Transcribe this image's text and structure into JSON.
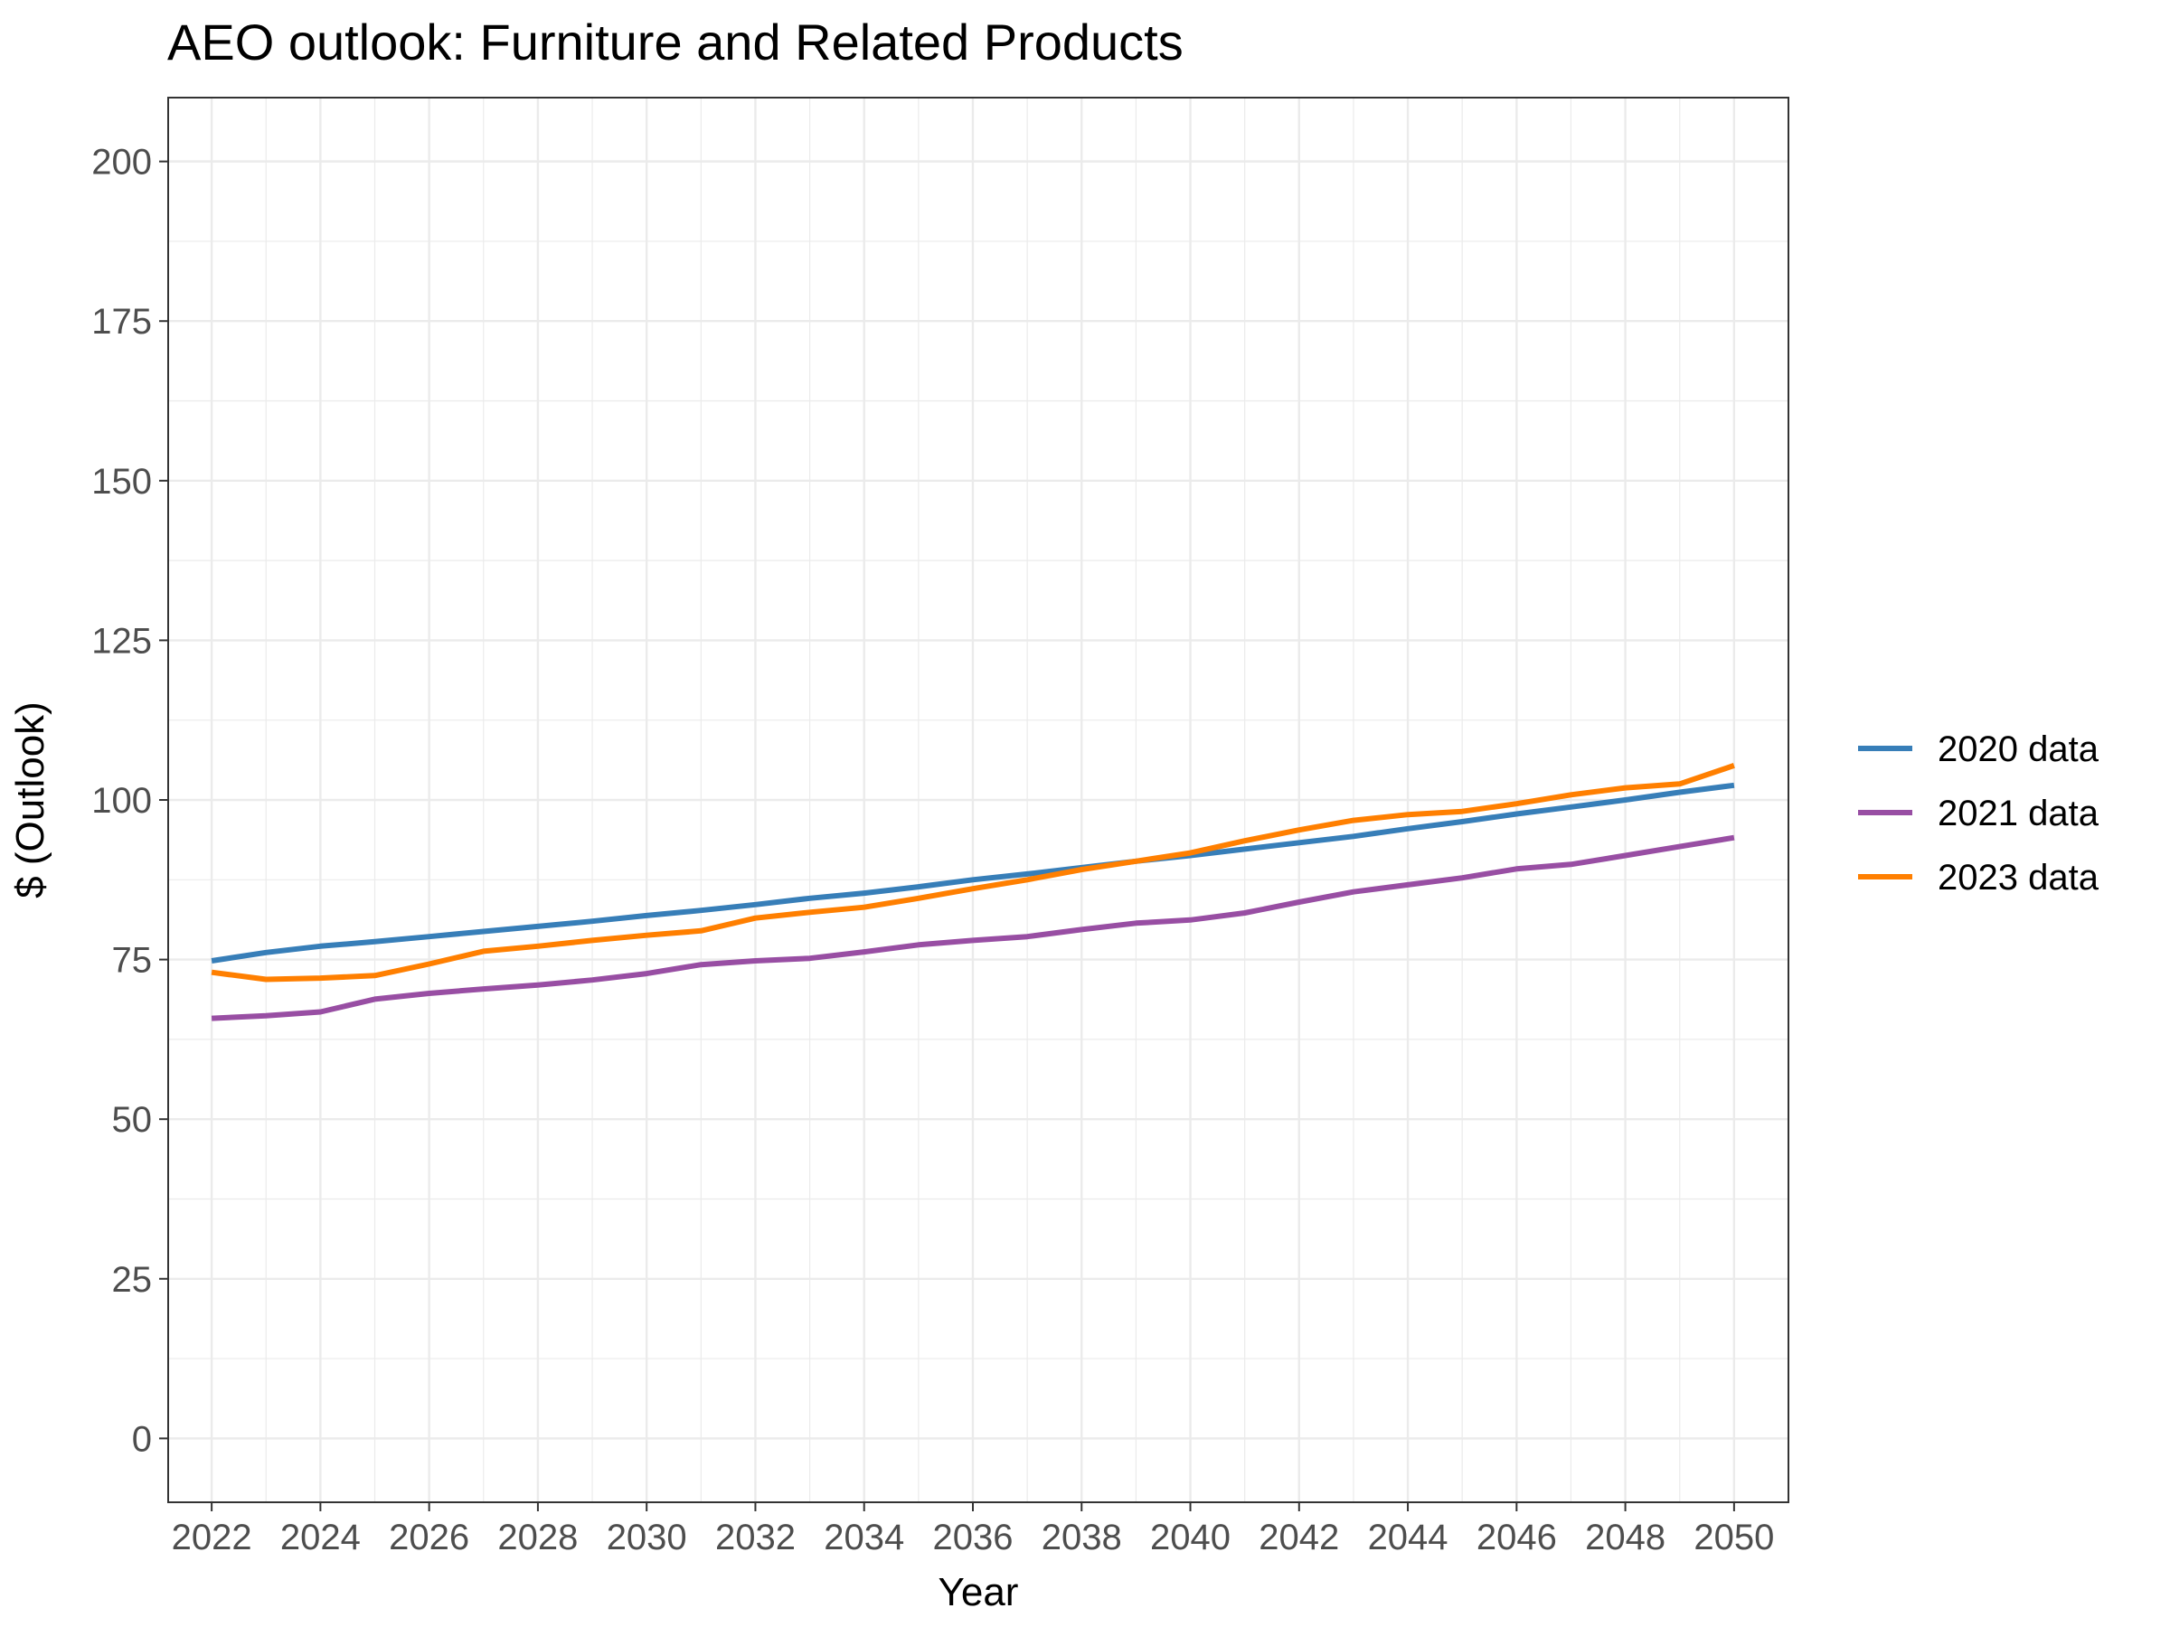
{
  "chart_data": {
    "type": "line",
    "title": "AEO outlook: Furniture and Related Products",
    "xlabel": "Year",
    "ylabel": "$ (Outlook)",
    "xlim": [
      2021.2,
      2051
    ],
    "ylim": [
      -10,
      210
    ],
    "x_ticks": [
      2022,
      2024,
      2026,
      2028,
      2030,
      2032,
      2034,
      2036,
      2038,
      2040,
      2042,
      2044,
      2046,
      2048,
      2050
    ],
    "y_ticks": [
      0,
      25,
      50,
      75,
      100,
      125,
      150,
      175,
      200
    ],
    "grid": true,
    "legend_position": "right",
    "x": [
      2022,
      2023,
      2024,
      2025,
      2026,
      2027,
      2028,
      2029,
      2030,
      2031,
      2032,
      2033,
      2034,
      2035,
      2036,
      2037,
      2038,
      2039,
      2040,
      2041,
      2042,
      2043,
      2044,
      2045,
      2046,
      2047,
      2048,
      2049,
      2050
    ],
    "series": [
      {
        "name": "2020 data",
        "color": "#377eb8",
        "values": [
          74.8,
          76.1,
          77.1,
          77.8,
          78.6,
          79.4,
          80.2,
          81.0,
          81.9,
          82.7,
          83.6,
          84.6,
          85.4,
          86.4,
          87.5,
          88.4,
          89.4,
          90.4,
          91.3,
          92.3,
          93.3,
          94.3,
          95.5,
          96.6,
          97.8,
          98.9,
          100.0,
          101.2,
          102.3
        ]
      },
      {
        "name": "2021 data",
        "color": "#984ea3",
        "values": [
          65.8,
          66.2,
          66.8,
          68.8,
          69.7,
          70.4,
          71.0,
          71.8,
          72.8,
          74.2,
          74.8,
          75.2,
          76.2,
          77.3,
          78.0,
          78.6,
          79.7,
          80.7,
          81.2,
          82.3,
          84.0,
          85.6,
          86.7,
          87.8,
          89.2,
          89.9,
          91.3,
          92.7,
          94.1
        ]
      },
      {
        "name": "2023 data",
        "color": "#ff7f00",
        "values": [
          73.0,
          71.9,
          72.1,
          72.5,
          74.3,
          76.3,
          77.1,
          78.0,
          78.8,
          79.5,
          81.5,
          82.4,
          83.2,
          84.6,
          86.1,
          87.5,
          89.1,
          90.4,
          91.7,
          93.6,
          95.3,
          96.8,
          97.7,
          98.2,
          99.4,
          100.8,
          101.9,
          102.5,
          105.4
        ]
      }
    ]
  }
}
